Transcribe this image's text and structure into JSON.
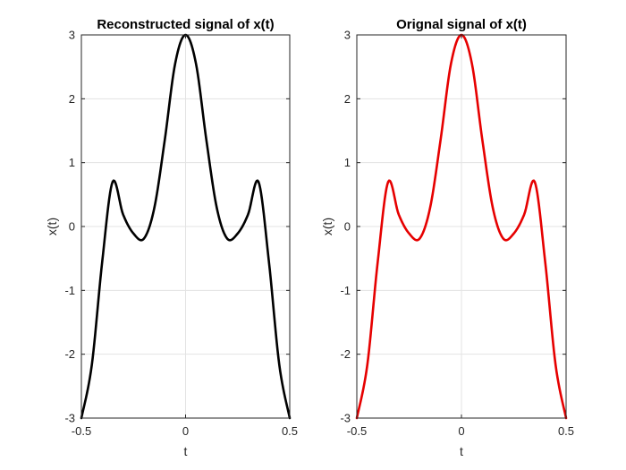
{
  "chart_data": [
    {
      "type": "line",
      "title": "Reconstructed signal of x(t)",
      "xlabel": "t",
      "ylabel": "x(t)",
      "xlim": [
        -0.5,
        0.5
      ],
      "ylim": [
        -3,
        3
      ],
      "xticks": [
        -0.5,
        0,
        0.5
      ],
      "xtick_labels": [
        "-0.5",
        "0",
        "0.5"
      ],
      "yticks": [
        -3,
        -2,
        -1,
        0,
        1,
        2,
        3
      ],
      "ytick_labels": [
        "-3",
        "-2",
        "-1",
        "0",
        "1",
        "2",
        "3"
      ],
      "grid": true,
      "series": [
        {
          "name": "reconstructed",
          "color": "#000000",
          "x": [
            -0.5,
            -0.45,
            -0.4,
            -0.35,
            -0.3,
            -0.25,
            -0.2,
            -0.15,
            -0.1,
            -0.05,
            0,
            0.05,
            0.1,
            0.15,
            0.2,
            0.25,
            0.3,
            0.35,
            0.4,
            0.45,
            0.5
          ],
          "y": [
            -3.0,
            -2.17,
            -0.55,
            0.7,
            0.19,
            -0.11,
            -0.19,
            0.29,
            1.35,
            2.55,
            3.0,
            2.55,
            1.35,
            0.29,
            -0.19,
            -0.11,
            0.19,
            0.7,
            -0.55,
            -2.17,
            -3.0
          ]
        }
      ]
    },
    {
      "type": "line",
      "title": "Orignal signal of x(t)",
      "xlabel": "t",
      "ylabel": "x(t)",
      "xlim": [
        -0.5,
        0.5
      ],
      "ylim": [
        -3,
        3
      ],
      "xticks": [
        -0.5,
        0,
        0.5
      ],
      "xtick_labels": [
        "-0.5",
        "0",
        "0.5"
      ],
      "yticks": [
        -3,
        -2,
        -1,
        0,
        1,
        2,
        3
      ],
      "ytick_labels": [
        "-3",
        "-2",
        "-1",
        "0",
        "1",
        "2",
        "3"
      ],
      "grid": true,
      "series": [
        {
          "name": "original",
          "color": "#e60000",
          "x": [
            -0.5,
            -0.45,
            -0.4,
            -0.35,
            -0.3,
            -0.25,
            -0.2,
            -0.15,
            -0.1,
            -0.05,
            0,
            0.05,
            0.1,
            0.15,
            0.2,
            0.25,
            0.3,
            0.35,
            0.4,
            0.45,
            0.5
          ],
          "y": [
            -3.0,
            -2.17,
            -0.55,
            0.7,
            0.19,
            -0.11,
            -0.19,
            0.29,
            1.35,
            2.55,
            3.0,
            2.55,
            1.35,
            0.29,
            -0.19,
            -0.11,
            0.19,
            0.7,
            -0.55,
            -2.17,
            -3.0
          ]
        }
      ]
    }
  ]
}
